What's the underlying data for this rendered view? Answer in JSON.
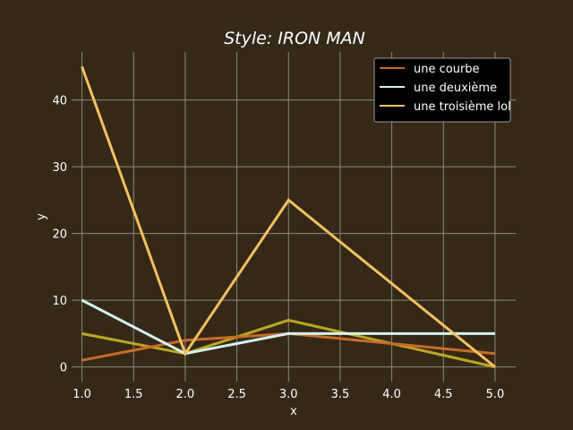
{
  "chart_data": {
    "type": "line",
    "title": "Style: IRON MAN",
    "xlabel": "x",
    "ylabel": "y",
    "x": [
      1,
      2,
      3,
      5
    ],
    "xlim": [
      0.9,
      5.2
    ],
    "ylim": [
      -2.2,
      47.2
    ],
    "xticks": [
      1.0,
      1.5,
      2.0,
      2.5,
      3.0,
      3.5,
      4.0,
      4.5,
      5.0
    ],
    "xtick_labels": [
      "1.0",
      "1.5",
      "2.0",
      "2.5",
      "3.0",
      "3.5",
      "4.0",
      "4.5",
      "5.0"
    ],
    "yticks": [
      0,
      10,
      20,
      30,
      40
    ],
    "ytick_labels": [
      "0",
      "10",
      "20",
      "30",
      "40"
    ],
    "grid": true,
    "legend_position": "top-right",
    "series": [
      {
        "name": "une courbe",
        "color": "#c86c2a",
        "values": [
          1,
          4,
          5,
          2
        ],
        "in_legend": true
      },
      {
        "name": "une deuxième",
        "color": "#d4f2f0",
        "values": [
          10,
          2,
          5,
          5
        ],
        "in_legend": true
      },
      {
        "name": "une troisième lol",
        "color": "#f5c060",
        "values": [
          45,
          2,
          25,
          0
        ],
        "in_legend": true
      },
      {
        "name": "",
        "color": "#b9a823",
        "values": [
          5,
          2,
          7,
          0
        ],
        "in_legend": false
      }
    ],
    "colors": {
      "background": "#352817",
      "grid": "#8e887c",
      "text": "#ffffff",
      "legend_bg": "#000000",
      "legend_border": "#9a9a9a"
    }
  }
}
